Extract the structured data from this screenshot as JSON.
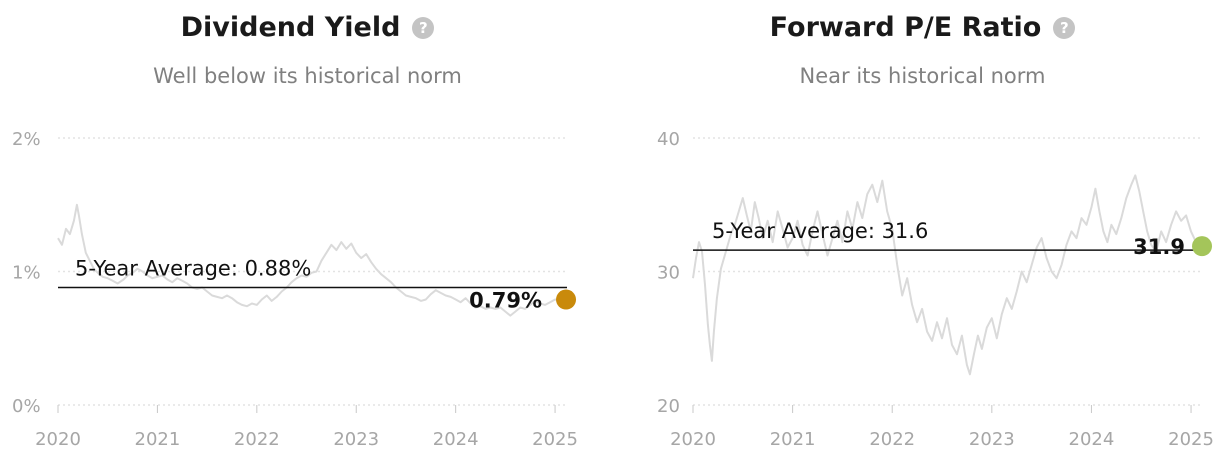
{
  "chart_data": [
    {
      "type": "line",
      "title": "Dividend Yield",
      "subtitle": "Well below its historical norm",
      "help_icon": "question-circle-icon",
      "y_ticks": [
        "2%",
        "1%",
        "0%"
      ],
      "ylim": [
        0,
        2
      ],
      "x_ticks": [
        "2020",
        "2021",
        "2022",
        "2023",
        "2024",
        "2025"
      ],
      "xlim": [
        2020,
        2025.12
      ],
      "average": {
        "label": "5-Year Average: 0.88%",
        "value": 0.88
      },
      "current": {
        "label": "0.79%",
        "value": 0.79,
        "color": "#c98a0b"
      },
      "series_color": "#dadada",
      "series": [
        {
          "values": [
            [
              2020.0,
              1.25
            ],
            [
              2020.04,
              1.2
            ],
            [
              2020.08,
              1.32
            ],
            [
              2020.12,
              1.28
            ],
            [
              2020.16,
              1.38
            ],
            [
              2020.19,
              1.5
            ],
            [
              2020.21,
              1.42
            ],
            [
              2020.24,
              1.28
            ],
            [
              2020.28,
              1.14
            ],
            [
              2020.32,
              1.08
            ],
            [
              2020.36,
              1.02
            ],
            [
              2020.4,
              0.99
            ],
            [
              2020.45,
              0.96
            ],
            [
              2020.5,
              0.95
            ],
            [
              2020.55,
              0.93
            ],
            [
              2020.6,
              0.91
            ],
            [
              2020.66,
              0.94
            ],
            [
              2020.7,
              0.97
            ],
            [
              2020.75,
              0.99
            ],
            [
              2020.8,
              1.02
            ],
            [
              2020.85,
              1.0
            ],
            [
              2020.9,
              0.97
            ],
            [
              2020.95,
              0.95
            ],
            [
              2021.0,
              0.96
            ],
            [
              2021.05,
              0.97
            ],
            [
              2021.1,
              0.94
            ],
            [
              2021.15,
              0.92
            ],
            [
              2021.2,
              0.95
            ],
            [
              2021.25,
              0.93
            ],
            [
              2021.3,
              0.91
            ],
            [
              2021.35,
              0.88
            ],
            [
              2021.4,
              0.87
            ],
            [
              2021.45,
              0.88
            ],
            [
              2021.5,
              0.85
            ],
            [
              2021.55,
              0.82
            ],
            [
              2021.6,
              0.81
            ],
            [
              2021.65,
              0.8
            ],
            [
              2021.7,
              0.82
            ],
            [
              2021.75,
              0.8
            ],
            [
              2021.8,
              0.77
            ],
            [
              2021.85,
              0.75
            ],
            [
              2021.9,
              0.74
            ],
            [
              2021.95,
              0.76
            ],
            [
              2022.0,
              0.75
            ],
            [
              2022.05,
              0.79
            ],
            [
              2022.1,
              0.82
            ],
            [
              2022.15,
              0.78
            ],
            [
              2022.2,
              0.81
            ],
            [
              2022.25,
              0.85
            ],
            [
              2022.3,
              0.88
            ],
            [
              2022.35,
              0.92
            ],
            [
              2022.4,
              0.95
            ],
            [
              2022.45,
              0.97
            ],
            [
              2022.5,
              0.96
            ],
            [
              2022.55,
              0.99
            ],
            [
              2022.6,
              1.0
            ],
            [
              2022.65,
              1.08
            ],
            [
              2022.7,
              1.14
            ],
            [
              2022.75,
              1.2
            ],
            [
              2022.8,
              1.16
            ],
            [
              2022.85,
              1.22
            ],
            [
              2022.9,
              1.17
            ],
            [
              2022.95,
              1.21
            ],
            [
              2023.0,
              1.14
            ],
            [
              2023.05,
              1.1
            ],
            [
              2023.1,
              1.13
            ],
            [
              2023.15,
              1.07
            ],
            [
              2023.2,
              1.02
            ],
            [
              2023.25,
              0.98
            ],
            [
              2023.3,
              0.95
            ],
            [
              2023.35,
              0.92
            ],
            [
              2023.4,
              0.88
            ],
            [
              2023.45,
              0.85
            ],
            [
              2023.5,
              0.82
            ],
            [
              2023.55,
              0.81
            ],
            [
              2023.6,
              0.8
            ],
            [
              2023.65,
              0.78
            ],
            [
              2023.7,
              0.79
            ],
            [
              2023.75,
              0.83
            ],
            [
              2023.8,
              0.86
            ],
            [
              2023.85,
              0.84
            ],
            [
              2023.9,
              0.82
            ],
            [
              2023.95,
              0.81
            ],
            [
              2024.0,
              0.79
            ],
            [
              2024.05,
              0.77
            ],
            [
              2024.1,
              0.8
            ],
            [
              2024.15,
              0.76
            ],
            [
              2024.2,
              0.73
            ],
            [
              2024.25,
              0.74
            ],
            [
              2024.3,
              0.72
            ],
            [
              2024.35,
              0.73
            ],
            [
              2024.4,
              0.72
            ],
            [
              2024.45,
              0.73
            ],
            [
              2024.5,
              0.7
            ],
            [
              2024.55,
              0.67
            ],
            [
              2024.6,
              0.7
            ],
            [
              2024.65,
              0.73
            ],
            [
              2024.7,
              0.72
            ],
            [
              2024.75,
              0.75
            ],
            [
              2024.8,
              0.78
            ],
            [
              2024.85,
              0.76
            ],
            [
              2024.9,
              0.75
            ],
            [
              2024.95,
              0.77
            ],
            [
              2025.0,
              0.79
            ],
            [
              2025.05,
              0.78
            ],
            [
              2025.08,
              0.79
            ]
          ]
        }
      ]
    },
    {
      "type": "line",
      "title": "Forward P/E Ratio",
      "subtitle": "Near its historical norm",
      "help_icon": "question-circle-icon",
      "y_ticks": [
        "40",
        "30",
        "20"
      ],
      "ylim": [
        20,
        40
      ],
      "x_ticks": [
        "2020",
        "2021",
        "2022",
        "2023",
        "2024",
        "2025"
      ],
      "xlim": [
        2020,
        2025.12
      ],
      "average": {
        "label": "5-Year Average: 31.6",
        "value": 31.6
      },
      "current": {
        "label": "31.9",
        "value": 31.9,
        "color": "#a4c55a"
      },
      "series_color": "#dadada",
      "series": [
        {
          "values": [
            [
              2020.0,
              29.5
            ],
            [
              2020.03,
              31.0
            ],
            [
              2020.06,
              32.2
            ],
            [
              2020.09,
              31.5
            ],
            [
              2020.12,
              29.0
            ],
            [
              2020.15,
              26.0
            ],
            [
              2020.17,
              24.5
            ],
            [
              2020.19,
              23.3
            ],
            [
              2020.21,
              25.5
            ],
            [
              2020.24,
              28.0
            ],
            [
              2020.28,
              30.2
            ],
            [
              2020.33,
              31.5
            ],
            [
              2020.38,
              32.8
            ],
            [
              2020.42,
              33.5
            ],
            [
              2020.46,
              34.5
            ],
            [
              2020.5,
              35.5
            ],
            [
              2020.54,
              34.2
            ],
            [
              2020.58,
              33.0
            ],
            [
              2020.62,
              35.2
            ],
            [
              2020.66,
              34.0
            ],
            [
              2020.7,
              32.5
            ],
            [
              2020.75,
              33.8
            ],
            [
              2020.8,
              32.2
            ],
            [
              2020.85,
              34.5
            ],
            [
              2020.9,
              33.2
            ],
            [
              2020.95,
              31.8
            ],
            [
              2021.0,
              32.5
            ],
            [
              2021.05,
              33.8
            ],
            [
              2021.1,
              32.0
            ],
            [
              2021.15,
              31.2
            ],
            [
              2021.2,
              33.0
            ],
            [
              2021.25,
              34.5
            ],
            [
              2021.3,
              32.8
            ],
            [
              2021.35,
              31.2
            ],
            [
              2021.4,
              32.5
            ],
            [
              2021.45,
              33.8
            ],
            [
              2021.5,
              32.2
            ],
            [
              2021.55,
              34.5
            ],
            [
              2021.6,
              33.2
            ],
            [
              2021.65,
              35.2
            ],
            [
              2021.7,
              34.0
            ],
            [
              2021.75,
              35.8
            ],
            [
              2021.8,
              36.5
            ],
            [
              2021.85,
              35.2
            ],
            [
              2021.9,
              36.8
            ],
            [
              2021.95,
              34.5
            ],
            [
              2022.0,
              33.2
            ],
            [
              2022.05,
              30.5
            ],
            [
              2022.1,
              28.2
            ],
            [
              2022.15,
              29.5
            ],
            [
              2022.2,
              27.5
            ],
            [
              2022.25,
              26.2
            ],
            [
              2022.3,
              27.2
            ],
            [
              2022.35,
              25.5
            ],
            [
              2022.4,
              24.8
            ],
            [
              2022.45,
              26.2
            ],
            [
              2022.5,
              25.0
            ],
            [
              2022.55,
              26.5
            ],
            [
              2022.6,
              24.5
            ],
            [
              2022.65,
              23.8
            ],
            [
              2022.7,
              25.2
            ],
            [
              2022.75,
              23.0
            ],
            [
              2022.78,
              22.3
            ],
            [
              2022.82,
              23.8
            ],
            [
              2022.86,
              25.2
            ],
            [
              2022.9,
              24.2
            ],
            [
              2022.95,
              25.8
            ],
            [
              2023.0,
              26.5
            ],
            [
              2023.05,
              25.0
            ],
            [
              2023.1,
              26.8
            ],
            [
              2023.15,
              28.0
            ],
            [
              2023.2,
              27.2
            ],
            [
              2023.25,
              28.5
            ],
            [
              2023.3,
              30.0
            ],
            [
              2023.35,
              29.2
            ],
            [
              2023.4,
              30.5
            ],
            [
              2023.45,
              31.8
            ],
            [
              2023.5,
              32.5
            ],
            [
              2023.55,
              31.0
            ],
            [
              2023.6,
              30.0
            ],
            [
              2023.65,
              29.5
            ],
            [
              2023.7,
              30.5
            ],
            [
              2023.75,
              32.0
            ],
            [
              2023.8,
              33.0
            ],
            [
              2023.85,
              32.5
            ],
            [
              2023.9,
              34.0
            ],
            [
              2023.95,
              33.5
            ],
            [
              2024.0,
              34.8
            ],
            [
              2024.04,
              36.2
            ],
            [
              2024.08,
              34.5
            ],
            [
              2024.12,
              33.0
            ],
            [
              2024.16,
              32.2
            ],
            [
              2024.2,
              33.5
            ],
            [
              2024.25,
              32.8
            ],
            [
              2024.3,
              34.0
            ],
            [
              2024.35,
              35.5
            ],
            [
              2024.4,
              36.5
            ],
            [
              2024.44,
              37.2
            ],
            [
              2024.48,
              36.0
            ],
            [
              2024.52,
              34.5
            ],
            [
              2024.56,
              33.0
            ],
            [
              2024.6,
              32.0
            ],
            [
              2024.65,
              31.5
            ],
            [
              2024.7,
              33.0
            ],
            [
              2024.75,
              32.2
            ],
            [
              2024.8,
              33.5
            ],
            [
              2024.85,
              34.5
            ],
            [
              2024.9,
              33.8
            ],
            [
              2024.95,
              34.2
            ],
            [
              2025.0,
              33.0
            ],
            [
              2025.05,
              32.2
            ],
            [
              2025.08,
              31.9
            ]
          ]
        }
      ]
    }
  ]
}
